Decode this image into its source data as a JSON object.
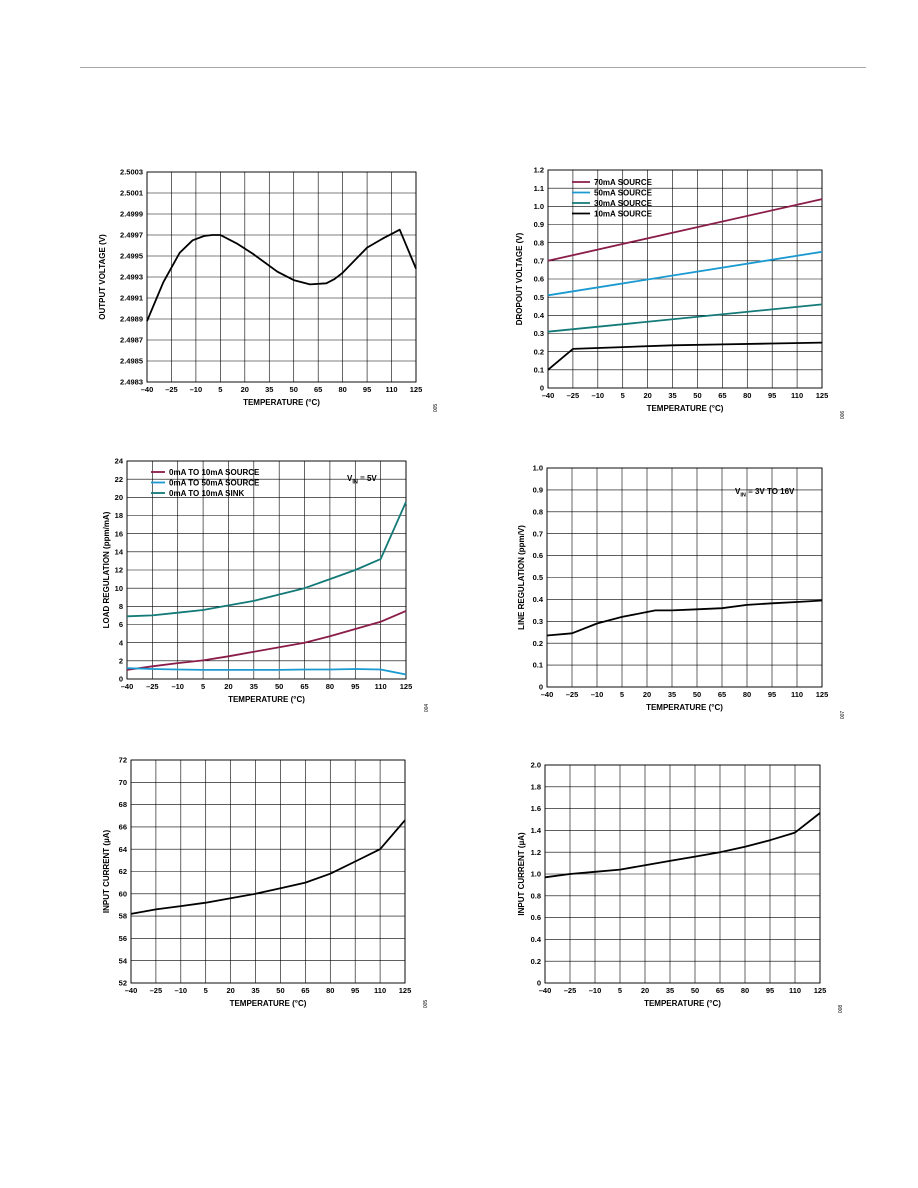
{
  "page": {},
  "colors": {
    "maroon": "#8a1c4a",
    "cyan": "#1a9ad0",
    "teal": "#137a78",
    "black": "#000000"
  },
  "chart_data": [
    {
      "type": "line",
      "ylabel": "OUTPUT VOLTAGE (V)",
      "xlabel": "TEMPERATURE (°C)",
      "xlim": [
        -40,
        125
      ],
      "ylim": [
        2.4983,
        2.5003
      ],
      "xticks": [
        -40,
        -25,
        -10,
        5,
        20,
        35,
        50,
        65,
        80,
        95,
        110,
        125
      ],
      "xtick_labels": [
        "–40",
        "–25",
        "–10",
        "5",
        "20",
        "35",
        "50",
        "65",
        "80",
        "95",
        "110",
        "125"
      ],
      "yticks": [
        2.4983,
        2.4985,
        2.4987,
        2.4989,
        2.4991,
        2.4993,
        2.4995,
        2.4997,
        2.4999,
        2.5001,
        2.5003
      ],
      "ytick_labels": [
        "2.4983",
        "2.4985",
        "2.4987",
        "2.4989",
        "2.4991",
        "2.4993",
        "2.4995",
        "2.4997",
        "2.4999",
        "2.5001",
        "2.5003"
      ],
      "grid": true,
      "figure_code": "005",
      "series": [
        {
          "color": "#000000",
          "x": [
            -40,
            -30,
            -20,
            -12,
            -5,
            0,
            5,
            15,
            25,
            40,
            50,
            60,
            70,
            75,
            80,
            95,
            105,
            115,
            125
          ],
          "y": [
            2.49888,
            2.49925,
            2.49953,
            2.49965,
            2.49969,
            2.4997,
            2.4997,
            2.49962,
            2.49952,
            2.49935,
            2.49927,
            2.49923,
            2.49924,
            2.49928,
            2.49934,
            2.49958,
            2.49967,
            2.49975,
            2.49938
          ]
        }
      ]
    },
    {
      "type": "line",
      "ylabel": "DROPOUT VOLTAGE (V)",
      "xlabel": "TEMPERATURE (°C)",
      "xlim": [
        -40,
        125
      ],
      "ylim": [
        0,
        1.2
      ],
      "xticks": [
        -40,
        -25,
        -10,
        5,
        20,
        35,
        50,
        65,
        80,
        95,
        110,
        125
      ],
      "xtick_labels": [
        "–40",
        "–25",
        "–10",
        "5",
        "20",
        "35",
        "50",
        "65",
        "80",
        "95",
        "110",
        "125"
      ],
      "yticks": [
        0,
        0.1,
        0.2,
        0.3,
        0.4,
        0.5,
        0.6,
        0.7,
        0.8,
        0.9,
        1.0,
        1.1,
        1.2
      ],
      "ytick_labels": [
        "0",
        "0.1",
        "0.2",
        "0.3",
        "0.4",
        "0.5",
        "0.6",
        "0.7",
        "0.8",
        "0.9",
        "1.0",
        "1.1",
        "1.2"
      ],
      "grid": true,
      "legend": "top-left",
      "figure_code": "006",
      "series": [
        {
          "name": "70mA SOURCE",
          "color": "#8a1c4a",
          "x": [
            -40,
            125
          ],
          "y": [
            0.7,
            1.04
          ]
        },
        {
          "name": "50mA SOURCE",
          "color": "#1a9ad0",
          "x": [
            -40,
            125
          ],
          "y": [
            0.51,
            0.75
          ]
        },
        {
          "name": "30mA SOURCE",
          "color": "#137a78",
          "x": [
            -40,
            125
          ],
          "y": [
            0.31,
            0.46
          ]
        },
        {
          "name": "10mA SOURCE",
          "color": "#000000",
          "x": [
            -40,
            -25,
            5,
            35,
            65,
            95,
            125
          ],
          "y": [
            0.1,
            0.215,
            0.225,
            0.235,
            0.24,
            0.245,
            0.25
          ]
        }
      ]
    },
    {
      "type": "line",
      "ylabel": "LOAD REGULATION (ppm/mA)",
      "xlabel": "TEMPERATURE (°C)",
      "xlim": [
        -40,
        125
      ],
      "ylim": [
        0,
        24
      ],
      "xticks": [
        -40,
        -25,
        -10,
        5,
        20,
        35,
        50,
        65,
        80,
        95,
        110,
        125
      ],
      "xtick_labels": [
        "–40",
        "–25",
        "–10",
        "5",
        "20",
        "35",
        "50",
        "65",
        "80",
        "95",
        "110",
        "125"
      ],
      "yticks": [
        0,
        2,
        4,
        6,
        8,
        10,
        12,
        14,
        16,
        18,
        20,
        22,
        24
      ],
      "ytick_labels": [
        "0",
        "2",
        "4",
        "6",
        "8",
        "10",
        "12",
        "14",
        "16",
        "18",
        "20",
        "22",
        "24"
      ],
      "grid": true,
      "legend": "top-left",
      "annotation": {
        "main": "V",
        "sub": "IN",
        "rest": " = 5V"
      },
      "figure_code": "004",
      "series": [
        {
          "name": "0mA TO 10mA SOURCE",
          "color": "#8a1c4a",
          "x": [
            -40,
            -25,
            -10,
            5,
            20,
            35,
            50,
            65,
            80,
            95,
            110,
            125
          ],
          "y": [
            1.0,
            1.4,
            1.75,
            2.05,
            2.5,
            3.0,
            3.5,
            4.0,
            4.7,
            5.5,
            6.3,
            7.5
          ]
        },
        {
          "name": "0mA TO 50mA SOURCE",
          "color": "#1a9ad0",
          "x": [
            -40,
            -25,
            -10,
            5,
            20,
            35,
            50,
            65,
            80,
            95,
            110,
            125
          ],
          "y": [
            1.2,
            1.1,
            1.05,
            1.0,
            1.0,
            1.0,
            1.0,
            1.05,
            1.05,
            1.1,
            1.05,
            0.5
          ]
        },
        {
          "name": "0mA TO 10mA SINK",
          "color": "#137a78",
          "x": [
            -40,
            -25,
            -10,
            5,
            20,
            35,
            50,
            65,
            80,
            95,
            110,
            125
          ],
          "y": [
            6.9,
            7.0,
            7.3,
            7.6,
            8.1,
            8.6,
            9.3,
            10.0,
            11.0,
            12.0,
            13.2,
            19.5
          ]
        }
      ]
    },
    {
      "type": "line",
      "ylabel": "LINE REGULATION (ppm/V)",
      "xlabel": "TEMPERATURE (°C)",
      "xlim": [
        -40,
        125
      ],
      "ylim": [
        0,
        1.0
      ],
      "xticks": [
        -40,
        -25,
        -10,
        5,
        20,
        35,
        50,
        65,
        80,
        95,
        110,
        125
      ],
      "xtick_labels": [
        "–40",
        "–25",
        "–10",
        "5",
        "20",
        "35",
        "50",
        "65",
        "80",
        "95",
        "110",
        "125"
      ],
      "yticks": [
        0,
        0.1,
        0.2,
        0.3,
        0.4,
        0.5,
        0.6,
        0.7,
        0.8,
        0.9,
        1.0
      ],
      "ytick_labels": [
        "0",
        "0.1",
        "0.2",
        "0.3",
        "0.4",
        "0.5",
        "0.6",
        "0.7",
        "0.8",
        "0.9",
        "1.0"
      ],
      "grid": true,
      "annotation": {
        "main": "V",
        "sub": "IN",
        "rest": " = 3V TO 16V"
      },
      "figure_code": "007",
      "series": [
        {
          "color": "#000000",
          "x": [
            -40,
            -25,
            -10,
            5,
            25,
            35,
            50,
            65,
            80,
            95,
            110,
            125
          ],
          "y": [
            0.235,
            0.245,
            0.29,
            0.32,
            0.35,
            0.35,
            0.355,
            0.36,
            0.375,
            0.382,
            0.388,
            0.395
          ]
        }
      ]
    },
    {
      "type": "line",
      "ylabel": "INPUT CURRENT (µA)",
      "xlabel": "TEMPERATURE (°C)",
      "xlim": [
        -40,
        125
      ],
      "ylim": [
        52,
        72
      ],
      "xticks": [
        -40,
        -25,
        -10,
        5,
        20,
        35,
        50,
        65,
        80,
        95,
        110,
        125
      ],
      "xtick_labels": [
        "–40",
        "–25",
        "–10",
        "5",
        "20",
        "35",
        "50",
        "65",
        "80",
        "95",
        "110",
        "125"
      ],
      "yticks": [
        52,
        54,
        56,
        58,
        60,
        62,
        64,
        66,
        68,
        70,
        72
      ],
      "ytick_labels": [
        "52",
        "54",
        "56",
        "58",
        "60",
        "62",
        "64",
        "66",
        "68",
        "70",
        "72"
      ],
      "grid": true,
      "figure_code": "005",
      "series": [
        {
          "color": "#000000",
          "x": [
            -40,
            -25,
            -10,
            5,
            20,
            35,
            50,
            65,
            80,
            95,
            110,
            125
          ],
          "y": [
            58.2,
            58.6,
            58.9,
            59.2,
            59.6,
            60.0,
            60.5,
            61.0,
            61.8,
            62.9,
            64.0,
            66.6
          ]
        }
      ]
    },
    {
      "type": "line",
      "ylabel": "INPUT CURRENT (µA)",
      "xlabel": "TEMPERATURE (°C)",
      "xlim": [
        -40,
        125
      ],
      "ylim": [
        0,
        2.0
      ],
      "xticks": [
        -40,
        -25,
        -10,
        5,
        20,
        35,
        50,
        65,
        80,
        95,
        110,
        125
      ],
      "xtick_labels": [
        "–40",
        "–25",
        "–10",
        "5",
        "20",
        "35",
        "50",
        "65",
        "80",
        "95",
        "110",
        "125"
      ],
      "yticks": [
        0,
        0.2,
        0.4,
        0.6,
        0.8,
        1.0,
        1.2,
        1.4,
        1.6,
        1.8,
        2.0
      ],
      "ytick_labels": [
        "0",
        "0.2",
        "0.4",
        "0.6",
        "0.8",
        "1.0",
        "1.2",
        "1.4",
        "1.6",
        "1.8",
        "2.0"
      ],
      "grid": true,
      "figure_code": "008",
      "series": [
        {
          "color": "#000000",
          "x": [
            -40,
            -25,
            -10,
            5,
            20,
            35,
            50,
            65,
            80,
            95,
            110,
            125
          ],
          "y": [
            0.97,
            1.0,
            1.02,
            1.04,
            1.08,
            1.12,
            1.16,
            1.2,
            1.25,
            1.31,
            1.38,
            1.56
          ]
        }
      ]
    }
  ]
}
